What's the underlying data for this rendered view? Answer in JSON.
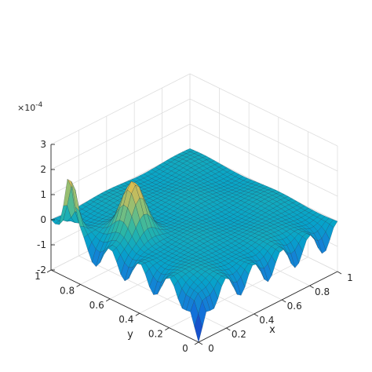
{
  "chart_data": {
    "type": "surface3d",
    "title": "",
    "xlabel": "x",
    "ylabel": "y",
    "zlabel": "",
    "x_range": [
      0,
      1
    ],
    "y_range": [
      0,
      1
    ],
    "z_range": [
      -2,
      3
    ],
    "z_exponent": "×10",
    "z_exponent_power": "-4",
    "x_ticks": [
      "0",
      "0.2",
      "0.4",
      "0.6",
      "0.8",
      "1"
    ],
    "y_ticks": [
      "0",
      "0.2",
      "0.4",
      "0.6",
      "0.8",
      "1"
    ],
    "z_ticks": [
      "-2",
      "-1",
      "0",
      "1",
      "2",
      "3"
    ],
    "grid": true,
    "colormap": "parula",
    "colormap_stops": [
      "#352a87",
      "#0f5cdd",
      "#1481d6",
      "#06a4ca",
      "#2eb7a4",
      "#87bf77",
      "#d1bb59",
      "#fec832",
      "#f9fb0e"
    ],
    "features": [
      {
        "kind": "peak",
        "x": 0.0,
        "y": 0.88,
        "height": 3.0,
        "width": 0.035
      },
      {
        "kind": "peak",
        "x": 0.2,
        "y": 0.63,
        "height": 2.0,
        "width": 0.06
      },
      {
        "kind": "trough",
        "x": 0.0,
        "y": 0.0,
        "depth": -2.0,
        "width": 0.03
      },
      {
        "kind": "boundary_oscillation",
        "edge": "x=0",
        "amplitude": -1.0
      },
      {
        "kind": "boundary_oscillation",
        "edge": "y=0",
        "amplitude": -1.0
      }
    ]
  }
}
